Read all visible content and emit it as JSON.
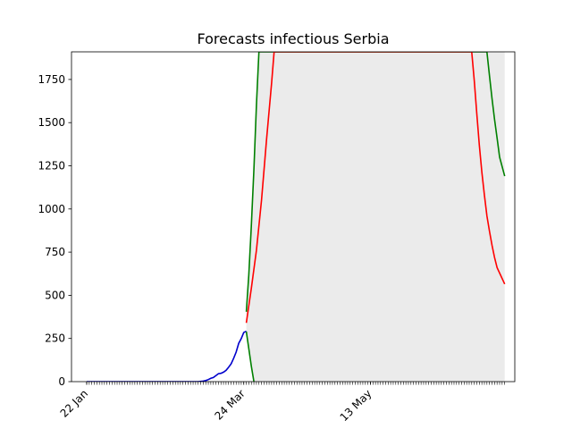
{
  "chart_data": {
    "type": "line",
    "title": "Forecasts infectious Serbia",
    "xlabel": "",
    "ylabel": "",
    "x_range_days": {
      "start": "2020-01-22",
      "end": "2020-07-05"
    },
    "ylim": [
      0,
      1910
    ],
    "yticks": [
      0,
      250,
      500,
      750,
      1000,
      1250,
      1500,
      1750
    ],
    "xticks": [
      {
        "label": "22 Jan",
        "date": "2020-01-22"
      },
      {
        "label": "24 Mar",
        "date": "2020-03-24"
      },
      {
        "label": "13 May",
        "date": "2020-05-13"
      }
    ],
    "grid": false,
    "legend": "none",
    "series": [
      {
        "role": "observed",
        "color": "#0000cc",
        "points": [
          [
            "2020-01-22",
            0
          ],
          [
            "2020-03-06",
            0
          ],
          [
            "2020-03-08",
            3
          ],
          [
            "2020-03-09",
            6
          ],
          [
            "2020-03-10",
            12
          ],
          [
            "2020-03-11",
            19
          ],
          [
            "2020-03-12",
            24
          ],
          [
            "2020-03-13",
            35
          ],
          [
            "2020-03-14",
            46
          ],
          [
            "2020-03-15",
            48
          ],
          [
            "2020-03-16",
            55
          ],
          [
            "2020-03-17",
            65
          ],
          [
            "2020-03-18",
            83
          ],
          [
            "2020-03-19",
            103
          ],
          [
            "2020-03-20",
            135
          ],
          [
            "2020-03-21",
            171
          ],
          [
            "2020-03-22",
            222
          ],
          [
            "2020-03-23",
            249
          ],
          [
            "2020-03-24",
            284
          ],
          [
            "2020-03-25",
            292
          ]
        ]
      },
      {
        "role": "forecast-upper",
        "color": "#008000",
        "points": [
          [
            "2020-03-25",
            405
          ],
          [
            "2020-03-26",
            620
          ],
          [
            "2020-03-27",
            900
          ],
          [
            "2020-03-28",
            1230
          ],
          [
            "2020-03-29",
            1600
          ],
          [
            "2020-03-30",
            1910
          ],
          [
            "2020-06-28",
            1910
          ],
          [
            "2020-06-29",
            1770
          ],
          [
            "2020-06-30",
            1640
          ],
          [
            "2020-07-01",
            1520
          ],
          [
            "2020-07-02",
            1410
          ],
          [
            "2020-07-03",
            1300
          ],
          [
            "2020-07-05",
            1190
          ]
        ]
      },
      {
        "role": "forecast-mid",
        "color": "#ff0000",
        "points": [
          [
            "2020-03-25",
            340
          ],
          [
            "2020-03-27",
            540
          ],
          [
            "2020-03-29",
            760
          ],
          [
            "2020-03-31",
            1050
          ],
          [
            "2020-04-02",
            1400
          ],
          [
            "2020-04-04",
            1730
          ],
          [
            "2020-04-05",
            1910
          ],
          [
            "2020-06-22",
            1910
          ],
          [
            "2020-06-23",
            1740
          ],
          [
            "2020-06-24",
            1550
          ],
          [
            "2020-06-25",
            1370
          ],
          [
            "2020-06-26",
            1210
          ],
          [
            "2020-06-27",
            1080
          ],
          [
            "2020-06-28",
            960
          ],
          [
            "2020-06-29",
            870
          ],
          [
            "2020-06-30",
            790
          ],
          [
            "2020-07-01",
            720
          ],
          [
            "2020-07-02",
            660
          ],
          [
            "2020-07-05",
            565
          ]
        ]
      },
      {
        "role": "forecast-lower",
        "color": "#008000",
        "points": [
          [
            "2020-03-25",
            290
          ],
          [
            "2020-03-26",
            190
          ],
          [
            "2020-03-27",
            90
          ],
          [
            "2020-03-28",
            0
          ]
        ]
      }
    ],
    "band": {
      "color": "#ebebeb",
      "upper": [
        [
          "2020-03-25",
          405
        ],
        [
          "2020-03-30",
          1910
        ],
        [
          "2020-07-05",
          1910
        ]
      ],
      "lower": [
        [
          "2020-03-25",
          290
        ],
        [
          "2020-03-28",
          0
        ],
        [
          "2020-07-05",
          0
        ]
      ]
    }
  }
}
